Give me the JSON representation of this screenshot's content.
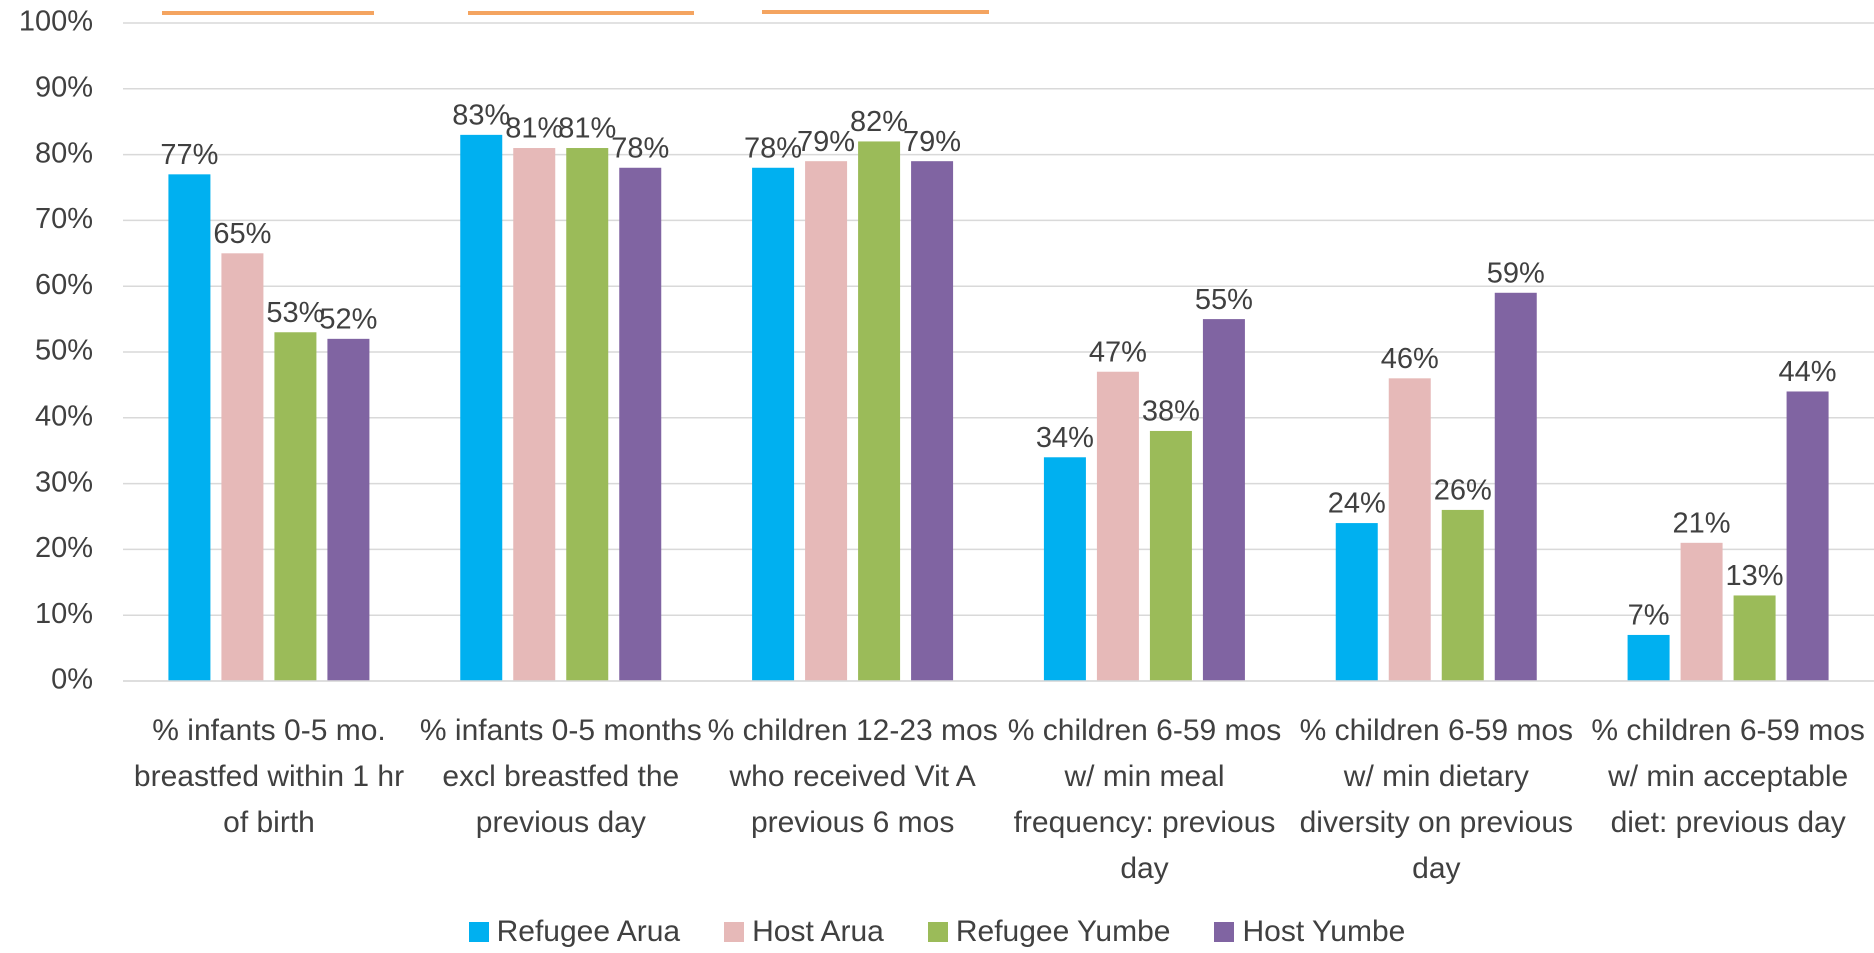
{
  "chart_data": {
    "type": "bar",
    "categories": [
      "% infants 0-5 mo. breastfed within 1 hr of birth",
      "% infants 0-5 months excl breastfed the previous day",
      "% children 12-23 mos who received Vit A previous 6 mos",
      "% children 6-59 mos w/ min meal frequency: previous day",
      "% children 6-59 mos w/ min dietary diversity on previous day",
      "% children 6-59 mos w/ min acceptable diet: previous day"
    ],
    "series": [
      {
        "name": "Refugee Arua",
        "color": "#00b0f0",
        "values": [
          77,
          83,
          78,
          34,
          24,
          7
        ],
        "value_labels": [
          "77%",
          "83%",
          "78%",
          "34%",
          "24%",
          "7%"
        ]
      },
      {
        "name": "Host Arua",
        "color": "#e6b9b8",
        "values": [
          65,
          81,
          79,
          47,
          46,
          21
        ],
        "value_labels": [
          "65%",
          "81%",
          "79%",
          "47%",
          "46%",
          "21%"
        ]
      },
      {
        "name": "Refugee Yumbe",
        "color": "#9bbb59",
        "values": [
          53,
          81,
          82,
          38,
          26,
          13
        ],
        "value_labels": [
          "53%",
          "81%",
          "82%",
          "38%",
          "26%",
          "13%"
        ]
      },
      {
        "name": "Host Yumbe",
        "color": "#8064a2",
        "values": [
          52,
          78,
          79,
          55,
          59,
          44
        ],
        "value_labels": [
          "52%",
          "78%",
          "79%",
          "55%",
          "59%",
          "44%"
        ]
      }
    ],
    "ylim": [
      0,
      100
    ],
    "yticks": [
      {
        "value": 0,
        "label": "0%"
      },
      {
        "value": 10,
        "label": "10%"
      },
      {
        "value": 20,
        "label": "20%"
      },
      {
        "value": 30,
        "label": "30%"
      },
      {
        "value": 40,
        "label": "40%"
      },
      {
        "value": 50,
        "label": "50%"
      },
      {
        "value": 60,
        "label": "60%"
      },
      {
        "value": 70,
        "label": "70%"
      },
      {
        "value": 80,
        "label": "80%"
      },
      {
        "value": 90,
        "label": "90%"
      },
      {
        "value": 100,
        "label": "100%"
      }
    ],
    "grid": true,
    "legend": "bottom"
  }
}
